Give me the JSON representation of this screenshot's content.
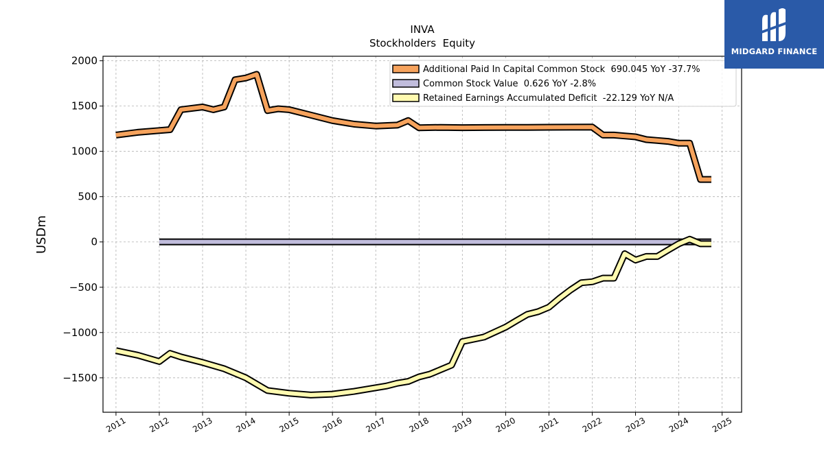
{
  "chart_data": {
    "type": "line",
    "title": "INVA",
    "subtitle": "Stockholders  Equity",
    "ylabel": "USDm",
    "xlabel": "",
    "xlim": [
      2010.7,
      2025.45
    ],
    "ylim": [
      -1880,
      2050
    ],
    "yticks": [
      2000,
      1500,
      1000,
      500,
      0,
      -500,
      -1000,
      -1500
    ],
    "ytick_labels": [
      "2000",
      "1500",
      "1000",
      "500",
      "0",
      "−500",
      "−1000",
      "−1500"
    ],
    "xticks": [
      2011,
      2012,
      2013,
      2014,
      2015,
      2016,
      2017,
      2018,
      2019,
      2020,
      2021,
      2022,
      2023,
      2024,
      2025
    ],
    "xtick_labels": [
      "2011",
      "2012",
      "2013",
      "2014",
      "2015",
      "2016",
      "2017",
      "2018",
      "2019",
      "2020",
      "2021",
      "2022",
      "2023",
      "2024",
      "2025"
    ],
    "grid": true,
    "legend_position": "top-right",
    "series": [
      {
        "name": "Additional Paid In Capital Common Stock  690.045 YoY -37.7%",
        "color": "#f6a35d",
        "x": [
          2011.0,
          2011.5,
          2012.0,
          2012.25,
          2012.5,
          2013.0,
          2013.25,
          2013.5,
          2013.75,
          2014.0,
          2014.25,
          2014.5,
          2014.75,
          2015.0,
          2015.5,
          2016.0,
          2016.5,
          2017.0,
          2017.5,
          2017.75,
          2018.0,
          2018.5,
          2019.0,
          2019.5,
          2020.0,
          2020.5,
          2021.0,
          2021.5,
          2022.0,
          2022.25,
          2022.5,
          2022.75,
          2023.0,
          2023.25,
          2023.5,
          2023.75,
          2024.0,
          2024.25,
          2024.5,
          2024.75
        ],
        "values": [
          1180,
          1210,
          1230,
          1240,
          1460,
          1490,
          1460,
          1490,
          1790,
          1810,
          1850,
          1450,
          1470,
          1460,
          1400,
          1340,
          1300,
          1280,
          1290,
          1340,
          1260,
          1265,
          1262,
          1263,
          1264,
          1265,
          1266,
          1267,
          1268,
          1180,
          1180,
          1170,
          1160,
          1130,
          1120,
          1110,
          1090,
          1090,
          690,
          690
        ]
      },
      {
        "name": "Common Stock Value  0.626 YoY -2.8%",
        "color": "#c0bcdc",
        "x": [
          2012.0,
          2024.75
        ],
        "values": [
          0.626,
          0.626
        ]
      },
      {
        "name": "Retained Earnings Accumulated Deficit  -22.129 YoY N/A",
        "color": "#fffab0",
        "x": [
          2011.0,
          2011.5,
          2012.0,
          2012.25,
          2012.5,
          2013.0,
          2013.5,
          2014.0,
          2014.25,
          2014.5,
          2015.0,
          2015.5,
          2016.0,
          2016.5,
          2017.0,
          2017.25,
          2017.5,
          2017.75,
          2018.0,
          2018.25,
          2018.5,
          2018.75,
          2019.0,
          2019.5,
          2020.0,
          2020.25,
          2020.5,
          2020.75,
          2021.0,
          2021.25,
          2021.5,
          2021.75,
          2022.0,
          2022.25,
          2022.5,
          2022.75,
          2023.0,
          2023.25,
          2023.5,
          2023.75,
          2024.0,
          2024.25,
          2024.5,
          2024.75
        ],
        "values": [
          -1200,
          -1250,
          -1320,
          -1230,
          -1270,
          -1330,
          -1400,
          -1500,
          -1570,
          -1640,
          -1670,
          -1690,
          -1680,
          -1650,
          -1610,
          -1590,
          -1560,
          -1540,
          -1490,
          -1460,
          -1410,
          -1360,
          -1100,
          -1050,
          -940,
          -870,
          -800,
          -770,
          -720,
          -620,
          -530,
          -450,
          -440,
          -400,
          -400,
          -130,
          -200,
          -160,
          -160,
          -90,
          -20,
          30,
          -20,
          -20
        ]
      }
    ]
  },
  "logo": {
    "text": "MIDGARD FINANCE",
    "icon": "midgard-finance-logo-icon",
    "color": "#2a5aa8"
  }
}
